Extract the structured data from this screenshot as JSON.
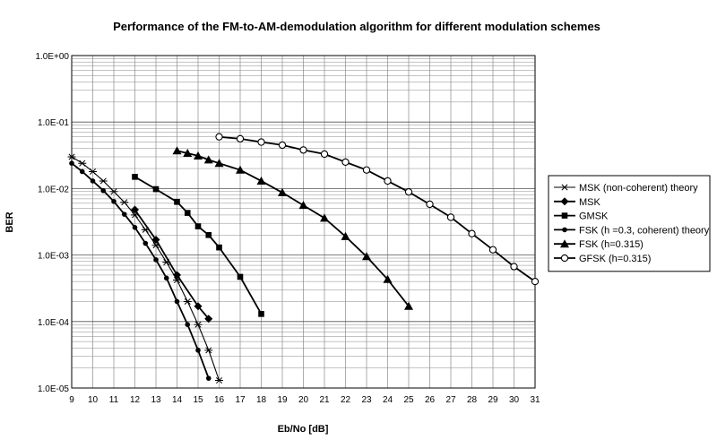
{
  "chart_data": {
    "type": "line",
    "title": "Performance of the FM-to-AM-demodulation algorithm for different modulation schemes",
    "xlabel": "Eb/No [dB]",
    "ylabel": "BER",
    "xlim": [
      9,
      31
    ],
    "ylim": [
      1e-05,
      1
    ],
    "y_scale": "log",
    "x_ticks": [
      "9",
      "10",
      "11",
      "12",
      "13",
      "14",
      "15",
      "16",
      "17",
      "18",
      "19",
      "20",
      "21",
      "22",
      "23",
      "24",
      "25",
      "26",
      "27",
      "28",
      "29",
      "30",
      "31"
    ],
    "y_ticks": [
      "1.0E-05",
      "1.0E-04",
      "1.0E-03",
      "1.0E-02",
      "1.0E-01",
      "1.0E+00"
    ],
    "grid": true,
    "legend_position": "right",
    "series": [
      {
        "name": "MSK (non-coherent) theory",
        "marker": "star",
        "x": [
          9,
          9.5,
          10,
          10.5,
          11,
          11.5,
          12,
          12.5,
          13,
          13.5,
          14,
          14.5,
          15,
          15.5,
          16
        ],
        "y": [
          0.03,
          0.024,
          0.018,
          0.013,
          0.009,
          0.0062,
          0.004,
          0.0024,
          0.0014,
          0.00078,
          0.00042,
          0.0002,
          9e-05,
          3.7e-05,
          1.3e-05
        ]
      },
      {
        "name": "MSK",
        "marker": "diamond",
        "x": [
          12,
          13,
          14,
          15,
          15.5
        ],
        "y": [
          0.0048,
          0.0017,
          0.0005,
          0.00017,
          0.00011
        ]
      },
      {
        "name": "GMSK",
        "marker": "square",
        "x": [
          12,
          13,
          14,
          14.5,
          15,
          15.5,
          16,
          17,
          18
        ],
        "y": [
          0.015,
          0.0098,
          0.0063,
          0.0043,
          0.0027,
          0.002,
          0.0013,
          0.00047,
          0.00013
        ]
      },
      {
        "name": "FSK (h =0.3, coherent) theory",
        "marker": "circle-filled",
        "x": [
          9,
          9.5,
          10,
          10.5,
          11,
          11.5,
          12,
          12.5,
          13,
          13.5,
          14,
          14.5,
          15,
          15.5
        ],
        "y": [
          0.024,
          0.018,
          0.013,
          0.0093,
          0.0064,
          0.0041,
          0.0026,
          0.0015,
          0.00085,
          0.00045,
          0.0002,
          9e-05,
          3.7e-05,
          1.4e-05
        ]
      },
      {
        "name": "FSK (h=0.315)",
        "marker": "triangle",
        "x": [
          14,
          14.5,
          15,
          15.5,
          16,
          17,
          18,
          19,
          20,
          21,
          22,
          23,
          24,
          25
        ],
        "y": [
          0.037,
          0.034,
          0.031,
          0.027,
          0.024,
          0.019,
          0.013,
          0.0087,
          0.0056,
          0.0036,
          0.0019,
          0.00095,
          0.00043,
          0.00017
        ]
      },
      {
        "name": "GFSK (h=0.315)",
        "marker": "circle-open",
        "x": [
          16,
          17,
          18,
          19,
          20,
          21,
          22,
          23,
          24,
          25,
          26,
          27,
          28,
          29,
          30,
          31
        ],
        "y": [
          0.06,
          0.056,
          0.05,
          0.045,
          0.038,
          0.033,
          0.025,
          0.019,
          0.013,
          0.0089,
          0.0058,
          0.0037,
          0.0021,
          0.0012,
          0.00067,
          0.0004
        ]
      }
    ]
  }
}
